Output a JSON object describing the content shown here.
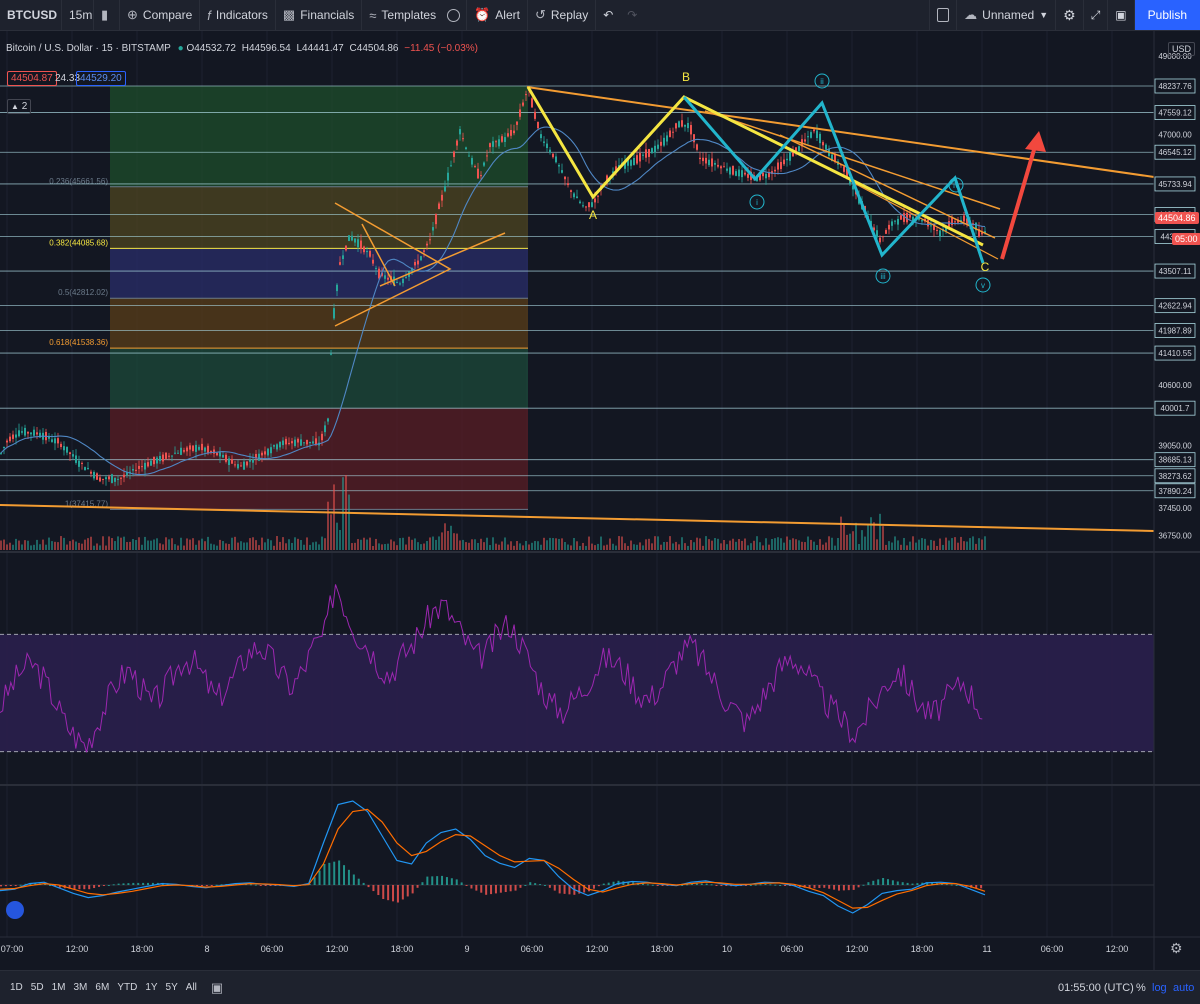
{
  "toolbar": {
    "symbol": "BTCUSD",
    "interval": "15m",
    "compare": "Compare",
    "indicators": "Indicators",
    "financials": "Financials",
    "templates": "Templates",
    "alert": "Alert",
    "replay": "Replay",
    "layout_name": "Unnamed",
    "publish": "Publish"
  },
  "legend": {
    "title": "Bitcoin / U.S. Dollar · 15 · BITSTAMP",
    "open": "O44532.72",
    "high": "H44596.54",
    "low": "L44441.47",
    "close": "C44504.86",
    "change": "−11.45 (−0.03%)",
    "bid": "44504.87",
    "spread": "24.33",
    "ask": "44529.20",
    "collapsed_count": "2"
  },
  "price_axis": {
    "currency": "USD",
    "last_price": "44504.86",
    "countdown": "05:00"
  },
  "bottom": {
    "ranges": [
      "1D",
      "5D",
      "1M",
      "3M",
      "6M",
      "YTD",
      "1Y",
      "5Y",
      "All"
    ],
    "time": "01:55:00 (UTC)",
    "percent": "%",
    "log": "log",
    "auto": "auto"
  },
  "colors": {
    "background": "#131722",
    "up": "#26a69a",
    "down": "#ef5350",
    "wave_yellow": "#f5e642",
    "wave_cyan": "#22b5cc",
    "trend_orange": "#f39c32",
    "arrow_red": "#f2483e",
    "rsi": "#9c27b0",
    "macd": "#2196f3",
    "signal": "#ff6d00"
  },
  "chart_data": [
    {
      "type": "candlestick",
      "name": "Bitcoin / U.S. Dollar · 15 · BITSTAMP",
      "ylim": [
        36500,
        49500
      ],
      "x_ticks": [
        "07:00",
        "12:00",
        "18:00",
        "8",
        "06:00",
        "12:00",
        "18:00",
        "9",
        "06:00",
        "12:00",
        "18:00",
        "10",
        "06:00",
        "12:00",
        "18:00",
        "11",
        "06:00",
        "12:00"
      ],
      "y_ticks": [
        36750,
        37450,
        39050,
        40600,
        47000,
        49000
      ],
      "path_points": [
        [
          0,
          38800
        ],
        [
          8,
          39200
        ],
        [
          20,
          39400
        ],
        [
          40,
          39350
        ],
        [
          60,
          39100
        ],
        [
          80,
          38600
        ],
        [
          100,
          38200
        ],
        [
          120,
          38200
        ],
        [
          140,
          38500
        ],
        [
          160,
          38700
        ],
        [
          180,
          38900
        ],
        [
          200,
          39000
        ],
        [
          220,
          38800
        ],
        [
          240,
          38500
        ],
        [
          260,
          38800
        ],
        [
          280,
          39100
        ],
        [
          300,
          39150
        ],
        [
          320,
          39100
        ],
        [
          328,
          39700
        ],
        [
          332,
          42000
        ],
        [
          340,
          43700
        ],
        [
          350,
          44400
        ],
        [
          360,
          44200
        ],
        [
          370,
          43900
        ],
        [
          380,
          43400
        ],
        [
          400,
          43200
        ],
        [
          420,
          43800
        ],
        [
          430,
          44300
        ],
        [
          440,
          45200
        ],
        [
          450,
          46100
        ],
        [
          460,
          47100
        ],
        [
          470,
          46400
        ],
        [
          480,
          45900
        ],
        [
          490,
          46700
        ],
        [
          505,
          46900
        ],
        [
          515,
          47100
        ],
        [
          522,
          47700
        ],
        [
          528,
          48200
        ],
        [
          540,
          47000
        ],
        [
          555,
          46400
        ],
        [
          570,
          45600
        ],
        [
          585,
          45100
        ],
        [
          595,
          45300
        ],
        [
          605,
          45800
        ],
        [
          620,
          46200
        ],
        [
          640,
          46400
        ],
        [
          660,
          46700
        ],
        [
          680,
          47300
        ],
        [
          690,
          47200
        ],
        [
          700,
          46400
        ],
        [
          720,
          46200
        ],
        [
          740,
          46000
        ],
        [
          755,
          45900
        ],
        [
          770,
          46000
        ],
        [
          785,
          46300
        ],
        [
          800,
          46700
        ],
        [
          815,
          47100
        ],
        [
          830,
          46500
        ],
        [
          845,
          46100
        ],
        [
          860,
          45300
        ],
        [
          880,
          44300
        ],
        [
          895,
          44800
        ],
        [
          910,
          44900
        ],
        [
          925,
          44800
        ],
        [
          940,
          44500
        ],
        [
          955,
          44800
        ],
        [
          965,
          44800
        ],
        [
          975,
          44700
        ],
        [
          980,
          44400
        ],
        [
          985,
          44505
        ]
      ],
      "horizontal_levels": [
        48237.76,
        47559.12,
        46545.12,
        45733.94,
        44951.96,
        44389.8,
        43507.11,
        42622.94,
        41987.89,
        41410.55,
        40001.7,
        38685.13,
        38273.62,
        37890.24
      ],
      "fib_levels": [
        {
          "label": "0.236(45661.56)",
          "value": 45661.56
        },
        {
          "label": "0.382(44085.68)",
          "value": 44085.68
        },
        {
          "label": "0.5(42812.02)",
          "value": 42812.02
        },
        {
          "label": "0.618(41538.36)",
          "value": 41538.36
        },
        {
          "label": "1(37415.77)",
          "value": 37415.77
        }
      ],
      "wave_labels_abc": [
        "A",
        "B",
        "C"
      ],
      "wave_labels_impulse": [
        "i",
        "ii",
        "iii",
        "iv",
        "v"
      ]
    },
    {
      "type": "line",
      "name": "RSI",
      "ylim": [
        20,
        90
      ],
      "y_ticks": [
        20.0,
        40.0,
        60.0,
        80.0
      ],
      "bands": [
        30,
        70
      ],
      "values": [
        45,
        52,
        58,
        60,
        55,
        48,
        40,
        35,
        32,
        40,
        48,
        55,
        58,
        52,
        46,
        50,
        56,
        62,
        60,
        54,
        48,
        52,
        58,
        64,
        66,
        62,
        56,
        52,
        58,
        66,
        70,
        88,
        78,
        70,
        66,
        60,
        56,
        62,
        66,
        72,
        78,
        80,
        74,
        68,
        62,
        64,
        70,
        74,
        68,
        60,
        52,
        46,
        44,
        48,
        52,
        58,
        62,
        60,
        56,
        50,
        48,
        52,
        58,
        64,
        66,
        60,
        54,
        48,
        44,
        40,
        46,
        52,
        58,
        62,
        60,
        54,
        48,
        44,
        40,
        36,
        42,
        48,
        54,
        58,
        52,
        46,
        42,
        46,
        50,
        54,
        48,
        42
      ]
    },
    {
      "type": "line",
      "name": "MACD",
      "ylim": [
        -700,
        1400
      ],
      "y_ticks": [
        -500.0,
        0.0,
        500.0,
        1000.0
      ],
      "macd": [
        -80,
        -60,
        20,
        40,
        -40,
        -120,
        -180,
        -150,
        -100,
        -60,
        -20,
        20,
        10,
        -20,
        -40,
        -10,
        20,
        30,
        10,
        0,
        -20,
        20,
        600,
        1150,
        1200,
        1050,
        700,
        350,
        300,
        600,
        750,
        800,
        650,
        420,
        310,
        250,
        380,
        350,
        120,
        -60,
        -150,
        -80,
        20,
        50,
        40,
        10,
        -10,
        40,
        60,
        20,
        -10,
        10,
        40,
        30,
        -10,
        -90,
        -150,
        -300,
        -400,
        -280,
        -120,
        -80,
        -60,
        30,
        40,
        20,
        -60,
        -140
      ],
      "signal": [
        -60,
        -50,
        -10,
        20,
        0,
        -60,
        -120,
        -140,
        -120,
        -90,
        -50,
        -10,
        0,
        -10,
        -30,
        -20,
        0,
        20,
        15,
        5,
        -10,
        5,
        300,
        800,
        1050,
        1080,
        900,
        600,
        420,
        480,
        620,
        720,
        700,
        560,
        420,
        330,
        340,
        350,
        240,
        80,
        -60,
        -100,
        -40,
        10,
        30,
        20,
        0,
        20,
        40,
        30,
        10,
        10,
        25,
        30,
        10,
        -40,
        -110,
        -220,
        -330,
        -320,
        -220,
        -130,
        -80,
        -10,
        20,
        20,
        -20,
        -90
      ]
    }
  ]
}
